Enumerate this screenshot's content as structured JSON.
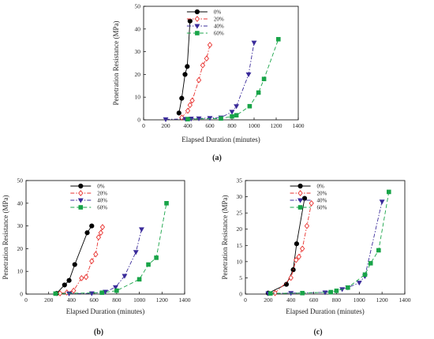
{
  "figure": {
    "panel_labels": [
      "(a)",
      "(b)",
      "(c)"
    ]
  },
  "series_styles": [
    {
      "name": "0%",
      "color": "#000000",
      "dash": "solid",
      "marker": "circle"
    },
    {
      "name": "20%",
      "color": "#e8322f",
      "dash": "dashdot",
      "marker": "diamond-open"
    },
    {
      "name": "40%",
      "color": "#3a2b9a",
      "dash": "dashdot",
      "marker": "triangle-down"
    },
    {
      "name": "60%",
      "color": "#18a448",
      "dash": "dash",
      "marker": "square"
    }
  ],
  "chart_data": [
    {
      "type": "line",
      "panel": "(a)",
      "xlabel": "Elapsed Duration (minutes)",
      "ylabel": "Penetration Resistance (MPa)",
      "xlim": [
        0,
        1400
      ],
      "ylim": [
        0,
        50
      ],
      "xticks": [
        0,
        200,
        400,
        600,
        800,
        1000,
        1200,
        1400
      ],
      "yticks": [
        0,
        10,
        20,
        30,
        40,
        50
      ],
      "legend_position": "upper-left",
      "series": [
        {
          "name": "0%",
          "x": [
            320,
            345,
            375,
            395,
            420
          ],
          "y": [
            3,
            9.5,
            20,
            23.5,
            43.5
          ]
        },
        {
          "name": "20%",
          "x": [
            345,
            400,
            420,
            440,
            500,
            535,
            570,
            600
          ],
          "y": [
            1,
            4,
            6.5,
            8.5,
            17.5,
            24,
            27,
            33
          ]
        },
        {
          "name": "40%",
          "x": [
            200,
            380,
            430,
            500,
            600,
            700,
            800,
            840,
            950,
            1000
          ],
          "y": [
            0.2,
            0.4,
            0.5,
            0.6,
            0.8,
            1,
            3.5,
            6,
            20,
            34
          ]
        },
        {
          "name": "60%",
          "x": [
            400,
            700,
            800,
            840,
            960,
            1040,
            1090,
            1220
          ],
          "y": [
            0.3,
            0.6,
            1.5,
            2,
            6,
            12,
            18,
            35.5
          ]
        }
      ]
    },
    {
      "type": "line",
      "panel": "(b)",
      "xlabel": "Elapsed Duration (minutes)",
      "ylabel": "Penetration Resistance (MPa)",
      "xlim": [
        0,
        1400
      ],
      "ylim": [
        0,
        50
      ],
      "xticks": [
        0,
        200,
        400,
        600,
        800,
        1000,
        1200,
        1400
      ],
      "yticks": [
        0,
        10,
        20,
        30,
        40,
        50
      ],
      "legend_position": "upper-left",
      "series": [
        {
          "name": "0%",
          "x": [
            270,
            340,
            380,
            430,
            540,
            580
          ],
          "y": [
            0.3,
            4,
            6,
            13,
            27,
            30
          ]
        },
        {
          "name": "20%",
          "x": [
            300,
            360,
            420,
            490,
            530,
            580,
            615,
            640,
            660,
            675
          ],
          "y": [
            0.3,
            0.7,
            1.5,
            7,
            7.5,
            14.5,
            17.5,
            25,
            27,
            29.5
          ]
        },
        {
          "name": "40%",
          "x": [
            380,
            580,
            700,
            790,
            870,
            970,
            1020
          ],
          "y": [
            0.2,
            0.3,
            1,
            3,
            8,
            18.5,
            28.5
          ]
        },
        {
          "name": "60%",
          "x": [
            260,
            670,
            800,
            1000,
            1080,
            1150,
            1240
          ],
          "y": [
            0.2,
            0.6,
            1.5,
            6.5,
            13,
            16,
            40
          ]
        }
      ]
    },
    {
      "type": "line",
      "panel": "(c)",
      "xlabel": "Elapsed Duration (minutes)",
      "ylabel": "Penetration Resistance (MPa)",
      "xlim": [
        0,
        1400
      ],
      "ylim": [
        0,
        35
      ],
      "xticks": [
        0,
        200,
        400,
        600,
        800,
        1000,
        1200,
        1400
      ],
      "yticks": [
        0,
        5,
        10,
        15,
        20,
        25,
        30,
        35
      ],
      "legend_position": "upper-left",
      "series": [
        {
          "name": "0%",
          "x": [
            200,
            360,
            420,
            450,
            520
          ],
          "y": [
            0.3,
            3,
            7.5,
            15.5,
            29.5
          ]
        },
        {
          "name": "20%",
          "x": [
            260,
            400,
            445,
            470,
            500,
            540,
            580
          ],
          "y": [
            0.3,
            5,
            10.5,
            11.5,
            14,
            21,
            28
          ]
        },
        {
          "name": "40%",
          "x": [
            200,
            400,
            700,
            850,
            900,
            1000,
            1050,
            1200
          ],
          "y": [
            0.2,
            0.3,
            0.5,
            1.5,
            2,
            3.5,
            5.5,
            28.5
          ]
        },
        {
          "name": "60%",
          "x": [
            220,
            500,
            750,
            800,
            900,
            1050,
            1100,
            1170,
            1260
          ],
          "y": [
            0.2,
            0.3,
            0.6,
            1,
            2,
            6,
            9.5,
            13.5,
            31.5
          ]
        }
      ]
    }
  ]
}
